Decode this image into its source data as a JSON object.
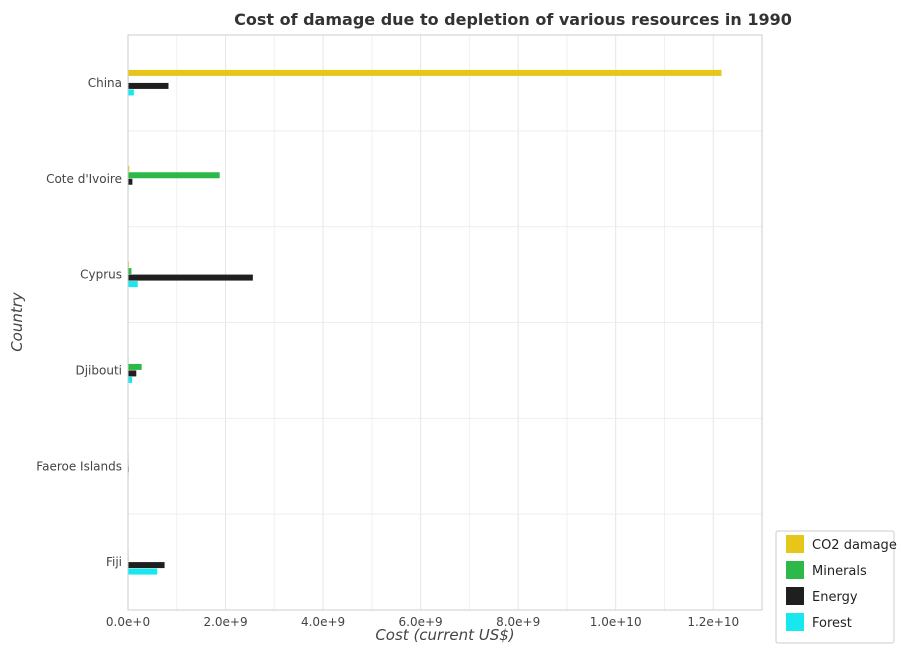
{
  "chart_data": {
    "type": "bar",
    "orientation": "horizontal",
    "title": "Cost of damage due to depletion of various resources in 1990",
    "xlabel": "Cost (current US$)",
    "ylabel": "Country",
    "categories": [
      "China",
      "Cote d'Ivoire",
      "Cyprus",
      "Djibouti",
      "Faeroe Islands",
      "Fiji"
    ],
    "xlim": [
      0,
      13000000000
    ],
    "xticks": [
      0,
      2000000000,
      4000000000,
      6000000000,
      8000000000,
      10000000000,
      12000000000
    ],
    "xtick_labels": [
      "0.0e+0",
      "2.0e+9",
      "4.0e+9",
      "6.0e+9",
      "8.0e+9",
      "1.0e+10",
      "1.2e+10"
    ],
    "grid": true,
    "legend_position": "bottom-right",
    "series": [
      {
        "name": "CO2 damage",
        "color": "#e6c619",
        "values": [
          12170000000,
          28000000,
          20000000,
          3000000,
          2000000,
          6000000
        ]
      },
      {
        "name": "Minerals",
        "color": "#2db84a",
        "values": [
          1500000,
          1880000000,
          70000000,
          280000000,
          500000,
          1000000
        ]
      },
      {
        "name": "Energy",
        "color": "#1f1f1f",
        "values": [
          830000000,
          90000000,
          2560000000,
          170000000,
          15000000,
          750000000
        ]
      },
      {
        "name": "Forest",
        "color": "#17e8f0",
        "values": [
          120000000,
          1000000,
          200000000,
          85000000,
          8000000,
          600000000
        ]
      }
    ]
  }
}
